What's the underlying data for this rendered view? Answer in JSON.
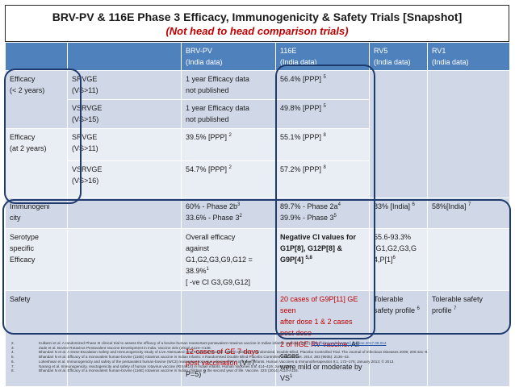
{
  "title": {
    "line1": "BRV-PV & 116E Phase 3 Efficacy, Immunogenicity & Safety Trials [Snapshot]",
    "line2": "(Not head to head comparison trials)"
  },
  "columns": [
    {
      "name": "BRV-PV",
      "sub": "(India data)"
    },
    {
      "name": "116E",
      "sub": "(India data)"
    },
    {
      "name": "RV5",
      "sub": "(India data)"
    },
    {
      "name": "RV1",
      "sub": "(India data)"
    }
  ],
  "rows": {
    "eff_lt2": {
      "label1": "Efficacy",
      "label2": "(< 2 years)",
      "sub1": "SRVGE",
      "sub2": "(VS>11)",
      "brv1": "1 year Efficacy data",
      "brv2": "not published",
      "e116": "56.4% [PPP]",
      "e116_sup": "5"
    },
    "eff_lt2_b": {
      "sub1": "VSRVGE",
      "sub2": "(VS>15)",
      "brv1": "1 year Efficacy data",
      "brv2": "not published",
      "e116": "49.8% [PPP]",
      "e116_sup": "5"
    },
    "eff_2": {
      "label1": "Efficacy",
      "label2": "(at 2 years)",
      "sub1": "SRVGE",
      "sub2": "(VS>11)",
      "brv": "39.5% [PPP]",
      "brv_sup": "2",
      "e116": "55.1% [PPP]",
      "e116_sup": "8"
    },
    "eff_2_b": {
      "sub1": "VSRVGE",
      "sub2": "(VS>16)",
      "brv": "54.7% [PPP]",
      "brv_sup": "2",
      "e116": "57.2% [PPP]",
      "e116_sup": "8"
    },
    "immuno": {
      "label1": "Immunogeni",
      "label2": "city",
      "brv1": "60% - Phase 2b",
      "brv1_sup": "3",
      "brv2": "33.6% - Phase 3",
      "brv2_sup": "2",
      "e1161": "89.7% - Phase 2a",
      "e1161_sup": "4",
      "e1162": "39.9% - Phase 3",
      "e1162_sup": "5",
      "rv5": "83% [India]",
      "rv5_sup": "6",
      "rv1": "58%[India]",
      "rv1_sup": "7"
    },
    "serotype": {
      "label1": "Serotype",
      "label2": "specific",
      "label3": "Efficacy",
      "brv1": "Overall efficacy",
      "brv2": "against",
      "brv3": "G1,G2,G3,G9,G12 =",
      "brv4": "38.9%",
      "brv4_sup": "1",
      "brv5": "[ -ve CI G3,G9,G12]",
      "e1161": "Negative CI values for",
      "e1162": "G1P[8], G12P[8] &",
      "e1163": "G9P[4]",
      "e1163_sup": "5,8",
      "rv51": "55.6-93.3%",
      "rv52": "[G1,G2,G3,G",
      "rv53": "4,P[1]",
      "rv53_sup": "6"
    },
    "safety": {
      "label": "Safety",
      "brv1": "12 cases of GE 7 days",
      "brv2a": "post vaccination",
      "brv2b": " (V=7,",
      "brv3": "P=5)",
      "brv3_sup": "2",
      "e1161": "20 cases of G9P[11] GE seen",
      "e1162": "after dose 1 & 2 cases post dose",
      "e1163": "2 of IIGE RV vaccine.",
      "e1163b": " All cases",
      "e1164": "were mild or moderate by VS",
      "e1164_sup": "1",
      "rv51": "Tolerable",
      "rv52": "safety profile",
      "rv52_sup": "6",
      "rv11": "Tolerable safety",
      "rv12": "profile",
      "rv12_sup": "7"
    }
  },
  "references": [
    {
      "num": "2.",
      "text": "Kulkarni et al. A randomized Phase III clinical trial to assess the efficacy of a bovine-human reassortant pentavalent rotavirus vaccine in Indian infants. Vaccine (2017).",
      "link": "https://doi.org/10.1016/j.vaccine.2017.09.014"
    },
    {
      "num": "3.",
      "text": "Zade et al. Bovine Rotavirus Pentavalent Vaccine Development in India. Vaccine 32S (2014) A124–A128.",
      "link": ""
    },
    {
      "num": "4.",
      "text": "Bhandari N et al. A Dose-Escalation Safety and Immunogenicity Study of Live Attenuated Oral Rotavirus Vaccine 116E in Infants: A Randomized, Double-Blind, Placebo-Controlled Trial. The Journal of Infectious Diseases 2009; 200:421–9.",
      "link": ""
    },
    {
      "num": "5.",
      "text": "Bhandari N et al. Efficacy of a monovalent human-bovine (116E) rotavirus vaccine in Indian infants: A Randomised Double Blind Placebo Controlled Trial. Lancet. 2014; 383 (9935): 2136–43.",
      "link": ""
    },
    {
      "num": "6.",
      "text": "Lokeshwar et al. Immunogenicity and safety of the pentavalent human-bovine (WC3) reassortant rotavirus vaccine (PRV) in Indian infants. Human Vaccines & Immunotherapeutics 9:1, 172–176; January 2013; © 2013.",
      "link": ""
    },
    {
      "num": "7.",
      "text": "Narang et al. Immunogenicity, reactogenicity and safety of human rotavirus vaccine (RIX4414) in Indian infants. Human Vaccines 5:6, 414–419; June 2009.",
      "link": ""
    },
    {
      "num": "8.",
      "text": "Bhandari N et al. Efficacy of a monovalent human-bovine (116E) rotavirus vaccine in Indian children in the second year of life. Vaccine. 32S (2014) A110-A116.",
      "link": ""
    }
  ],
  "colors": {
    "header": "#4f81bd",
    "band_dark": "#d0d8e8",
    "band_light": "#e9edf4",
    "accent_red": "#c00000",
    "outline": "#1f3b6e"
  }
}
